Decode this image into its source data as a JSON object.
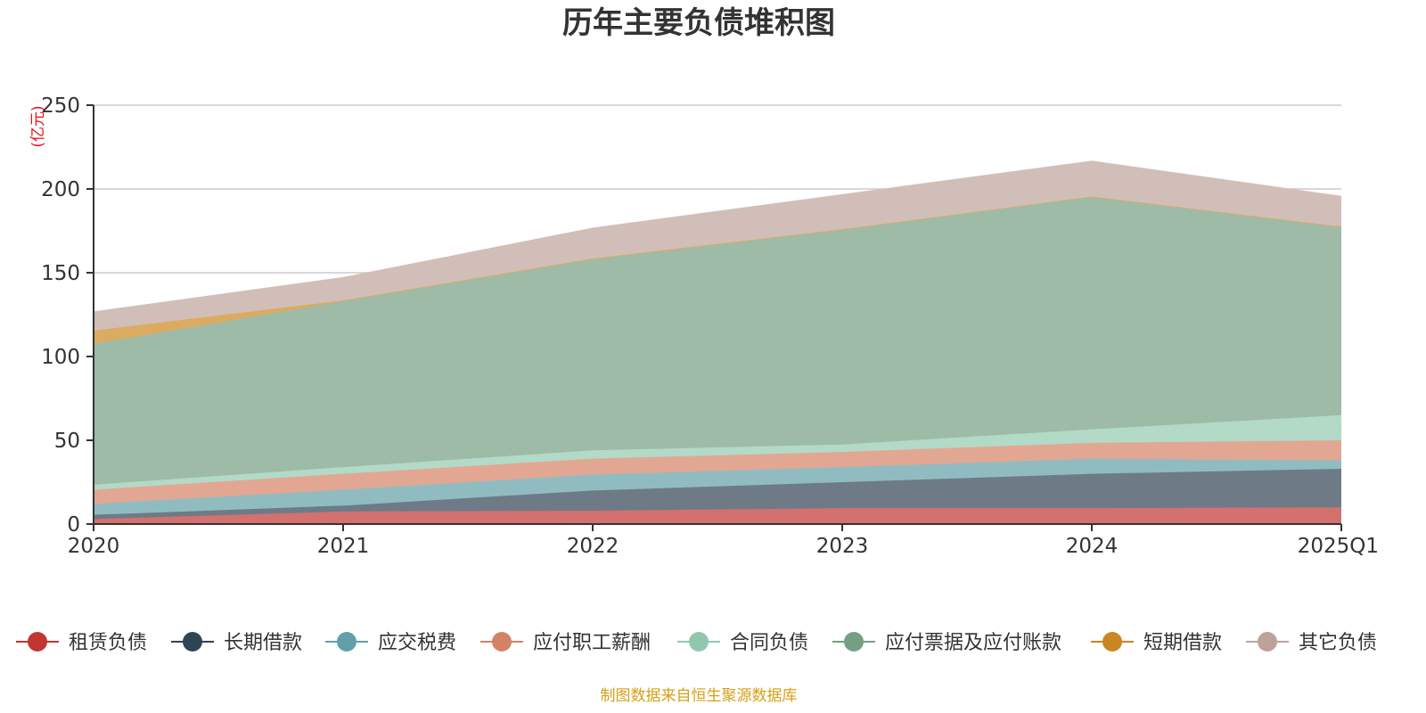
{
  "chart_data": {
    "type": "area",
    "stacked": true,
    "title": "历年主要负债堆积图",
    "unit_label": "(亿元)",
    "x": [
      "2020",
      "2021",
      "2022",
      "2023",
      "2024",
      "2025Q1"
    ],
    "ylim": [
      0,
      250
    ],
    "yticks": [
      0,
      50,
      100,
      150,
      200,
      250
    ],
    "grid": true,
    "legend_position": "bottom",
    "series": [
      {
        "name": "租赁负债",
        "values": [
          3,
          7.5,
          8,
          9.5,
          9.5,
          10
        ],
        "color": "#c23531",
        "fill": "#d4706d"
      },
      {
        "name": "长期借款",
        "values": [
          2.5,
          3.5,
          12,
          15.5,
          20.5,
          23
        ],
        "color": "#2f4554",
        "fill": "#6e7b87"
      },
      {
        "name": "应交税费",
        "values": [
          6.5,
          9.5,
          9.5,
          9,
          9,
          5
        ],
        "color": "#61a0a8",
        "fill": "#90bcc1"
      },
      {
        "name": "应付职工薪酬",
        "values": [
          8.5,
          9.5,
          9.5,
          9,
          9.5,
          12
        ],
        "color": "#d48265",
        "fill": "#e2a792"
      },
      {
        "name": "合同负债",
        "values": [
          3,
          4,
          5,
          4.5,
          8,
          15
        ],
        "color": "#91c7ae",
        "fill": "#b3d9c7"
      },
      {
        "name": "应付票据及应付账款",
        "values": [
          84,
          99,
          114,
          128,
          139,
          112
        ],
        "color": "#749f83",
        "fill": "#9ebba8"
      },
      {
        "name": "短期借款",
        "values": [
          8,
          0.5,
          0.5,
          0.5,
          0,
          0.5
        ],
        "color": "#ca8622",
        "fill": "#dcab62"
      },
      {
        "name": "其它负债",
        "values": [
          11,
          13.5,
          18,
          20.5,
          21,
          18
        ],
        "color": "#bda29a",
        "fill": "#d2beb8"
      }
    ]
  },
  "source_note": "制图数据来自恒生聚源数据库"
}
